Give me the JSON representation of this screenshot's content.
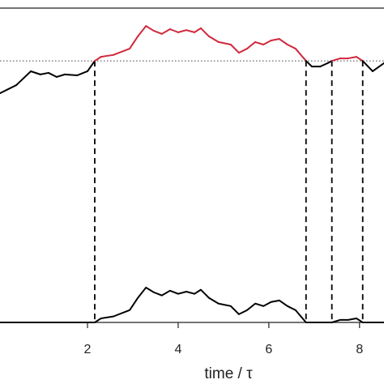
{
  "chart_data": {
    "type": "line",
    "x_label": "time / τ",
    "x": [
      0.07,
      0.43,
      0.75,
      0.96,
      1.14,
      1.32,
      1.5,
      1.77,
      2.0,
      2.16,
      2.3,
      2.57,
      2.93,
      3.11,
      3.29,
      3.46,
      3.64,
      3.82,
      4.0,
      4.18,
      4.36,
      4.5,
      4.68,
      4.89,
      5.16,
      5.34,
      5.52,
      5.7,
      5.88,
      6.05,
      6.23,
      6.41,
      6.59,
      6.82,
      6.95,
      7.13,
      7.3,
      7.39,
      7.57,
      7.75,
      7.93,
      8.07,
      8.29,
      8.54
    ],
    "series": [
      {
        "color": "#000000",
        "above_color": "#d0283c",
        "values": [
          7.29,
          7.55,
          7.99,
          7.89,
          7.94,
          7.81,
          7.89,
          7.86,
          7.99,
          8.32,
          8.45,
          8.51,
          8.71,
          9.1,
          9.43,
          9.28,
          9.18,
          9.33,
          9.23,
          9.3,
          9.23,
          9.36,
          9.1,
          8.92,
          8.84,
          8.58,
          8.71,
          8.92,
          8.84,
          8.97,
          9.02,
          8.84,
          8.71,
          8.32,
          8.14,
          8.14,
          8.25,
          8.32,
          8.4,
          8.4,
          8.45,
          8.32,
          7.99,
          8.25
        ]
      },
      {
        "color": "#000000",
        "values": [
          0,
          0,
          0,
          0,
          0,
          0,
          0,
          0,
          0,
          0,
          0.13,
          0.19,
          0.39,
          0.78,
          1.11,
          0.96,
          0.86,
          1.01,
          0.91,
          0.98,
          0.91,
          1.04,
          0.78,
          0.6,
          0.52,
          0.26,
          0.39,
          0.6,
          0.52,
          0.65,
          0.7,
          0.52,
          0.39,
          0,
          0,
          0,
          0,
          0,
          0.08,
          0.08,
          0.13,
          0,
          0,
          0
        ]
      }
    ],
    "threshold": 8.32,
    "crossings": [
      2.16,
      6.82,
      7.39,
      8.07
    ],
    "xlim": [
      0.07,
      8.54
    ],
    "ylim": [
      0,
      10
    ],
    "xticks": [
      2,
      4,
      6,
      8
    ]
  }
}
